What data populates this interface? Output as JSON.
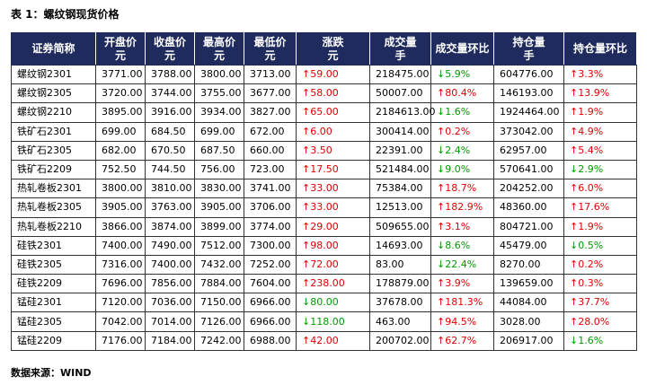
{
  "title": "表 1：螺纹钢现货价格",
  "table": {
    "header": [
      "证券简称",
      "开盘价\n元",
      "收盘价\n元",
      "最高价\n元",
      "最低价\n元",
      "涨跌\n元",
      "成交量\n手",
      "成交量环比",
      "持仓量\n手",
      "持仓量环比"
    ],
    "rows": [
      [
        "螺纹钢2301",
        "3771.00",
        "3788.00",
        "3800.00",
        "3713.00",
        "↑59.00",
        "218475.00",
        "↓5.9%",
        "604776.00",
        "↑3.3%"
      ],
      [
        "螺纹钢2305",
        "3720.00",
        "3744.00",
        "3755.00",
        "3677.00",
        "↑58.00",
        "50007.00",
        "↑80.4%",
        "146193.00",
        "↑13.9%"
      ],
      [
        "螺纹钢2210",
        "3895.00",
        "3916.00",
        "3934.00",
        "3827.00",
        "↑65.00",
        "2184613.00",
        "↓1.6%",
        "1924464.00",
        "↑1.9%"
      ],
      [
        "铁矿石2301",
        "699.00",
        "684.50",
        "699.00",
        "672.00",
        "↑6.00",
        "300414.00",
        "↑0.2%",
        "373042.00",
        "↑4.9%"
      ],
      [
        "铁矿石2305",
        "682.00",
        "670.50",
        "687.50",
        "660.00",
        "↑3.50",
        "22391.00",
        "↓2.4%",
        "62957.00",
        "↑5.4%"
      ],
      [
        "铁矿石2209",
        "752.50",
        "744.50",
        "756.00",
        "723.00",
        "↑17.50",
        "521484.00",
        "↓9.0%",
        "570641.00",
        "↓2.9%"
      ],
      [
        "热轧卷板2301",
        "3800.00",
        "3810.00",
        "3830.00",
        "3741.00",
        "↑33.00",
        "75384.00",
        "↑18.7%",
        "204252.00",
        "↑6.0%"
      ],
      [
        "热轧卷板2305",
        "3905.00",
        "3763.00",
        "3905.00",
        "3706.00",
        "↑33.00",
        "12513.00",
        "↑182.9%",
        "48360.00",
        "↑17.6%"
      ],
      [
        "热轧卷板2210",
        "3866.00",
        "3874.00",
        "3899.00",
        "3774.00",
        "↑29.00",
        "509655.00",
        "↑3.1%",
        "804721.00",
        "↑1.9%"
      ],
      [
        "硅铁2301",
        "7400.00",
        "7490.00",
        "7512.00",
        "7300.00",
        "↑98.00",
        "14693.00",
        "↓8.6%",
        "45479.00",
        "↓0.5%"
      ],
      [
        "硅铁2305",
        "7316.00",
        "7400.00",
        "7432.00",
        "7252.00",
        "↑72.00",
        "83.00",
        "↓22.4%",
        "8270.00",
        "↑0.2%"
      ],
      [
        "硅铁2209",
        "7696.00",
        "7856.00",
        "7884.00",
        "7604.00",
        "↑238.00",
        "178879.00",
        "↑3.9%",
        "139659.00",
        "↑0.3%"
      ],
      [
        "锰硅2301",
        "7120.00",
        "7036.00",
        "7150.00",
        "6966.00",
        "↓80.00",
        "37678.00",
        "↑181.3%",
        "44084.00",
        "↑37.7%"
      ],
      [
        "锰硅2305",
        "7042.00",
        "7014.00",
        "7126.00",
        "6966.00",
        "↓118.00",
        "463.00",
        "↑94.5%",
        "3028.00",
        "↑28.0%"
      ],
      [
        "锰硅2209",
        "7176.00",
        "7184.00",
        "7242.00",
        "6988.00",
        "↑42.00",
        "200702.00",
        "↑62.7%",
        "206917.00",
        "↓1.6%"
      ]
    ]
  },
  "source": "数据来源：WIND"
}
